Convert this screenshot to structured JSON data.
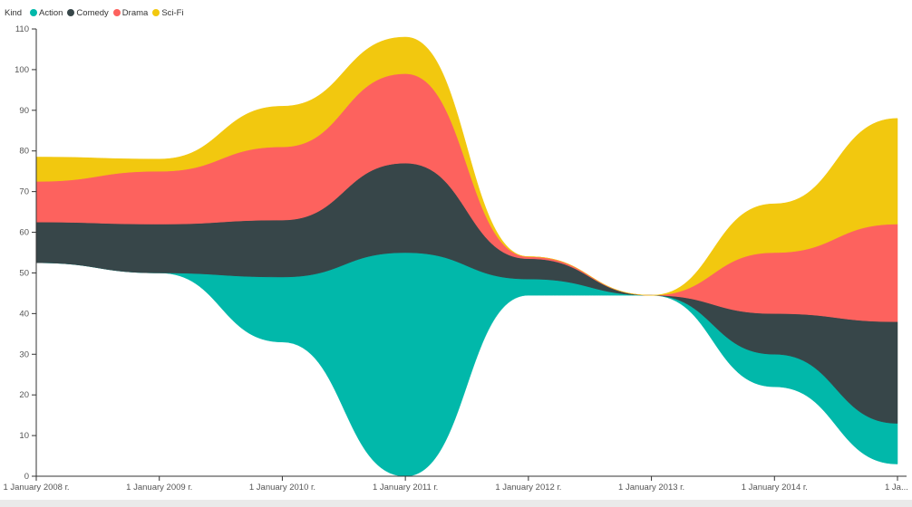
{
  "legend": {
    "title": "Kind",
    "items": [
      {
        "label": "Action",
        "color": "#01B8AA"
      },
      {
        "label": "Comedy",
        "color": "#374649"
      },
      {
        "label": "Drama",
        "color": "#FD625E"
      },
      {
        "label": "Sci-Fi",
        "color": "#F2C80F"
      }
    ]
  },
  "chart_data": {
    "type": "area",
    "variant": "streamgraph",
    "categories": [
      "1 January 2008 г.",
      "1 January 2009 г.",
      "1 January 2010 г.",
      "1 January 2011 г.",
      "1 January 2012 г.",
      "1 January 2013 г.",
      "1 January 2014 г.",
      "1 January 2015 г."
    ],
    "x_tick_labels": [
      "1 January 2008 г.",
      "1 January 2009 г.",
      "1 January 2010 г.",
      "1 January 2011 г.",
      "1 January 2012 г.",
      "1 January 2013 г.",
      "1 January 2014 г.",
      "1 Ja..."
    ],
    "y_ticks": [
      0,
      10,
      20,
      30,
      40,
      50,
      60,
      70,
      80,
      90,
      100,
      110
    ],
    "ylim": [
      0,
      110
    ],
    "baseline": [
      52.5,
      50,
      33,
      0,
      44.5,
      44.5,
      22,
      3
    ],
    "series": [
      {
        "name": "Action",
        "color": "#01B8AA",
        "values": [
          0,
          0,
          16,
          55,
          4,
          0,
          8,
          10
        ]
      },
      {
        "name": "Comedy",
        "color": "#374649",
        "values": [
          10,
          12,
          14,
          22,
          5,
          0,
          10,
          25
        ]
      },
      {
        "name": "Drama",
        "color": "#FD625E",
        "values": [
          10,
          13,
          18,
          22,
          0.5,
          0,
          15,
          24
        ]
      },
      {
        "name": "Sci-Fi",
        "color": "#F2C80F",
        "values": [
          6,
          3,
          10,
          9,
          0,
          0,
          12,
          26
        ]
      }
    ],
    "grid": false,
    "legend_position": "top-left"
  }
}
